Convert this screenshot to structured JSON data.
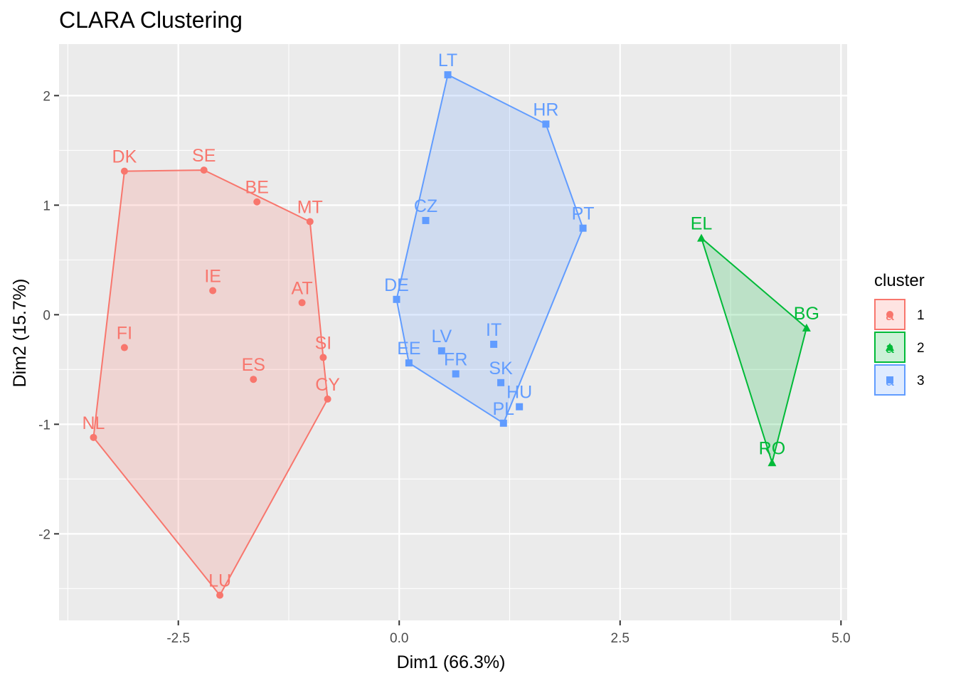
{
  "chart_data": {
    "type": "scatter",
    "title": "CLARA Clustering",
    "xlabel": "Dim1 (66.3%)",
    "ylabel": "Dim2 (15.7%)",
    "xlim": [
      -3.85,
      5.07
    ],
    "ylim": [
      -2.79,
      2.47
    ],
    "x_major_ticks": [
      -2.5,
      0.0,
      2.5,
      5.0
    ],
    "x_tick_labels": [
      "-2.5",
      "0.0",
      "2.5",
      "5.0"
    ],
    "y_major_ticks": [
      -2,
      -1,
      0,
      1,
      2
    ],
    "y_tick_labels": [
      "-2",
      "-1",
      "0",
      "1",
      "2"
    ],
    "grid": true,
    "background": "#ebebeb",
    "legend": {
      "title": "cluster",
      "position": "right",
      "key_glyph": "a",
      "entries": [
        {
          "label": "1",
          "color": "#f8766d"
        },
        {
          "label": "2",
          "color": "#00ba38"
        },
        {
          "label": "3",
          "color": "#619cff"
        }
      ]
    },
    "series": [
      {
        "name": "1",
        "color": "#f8766d",
        "fill": "#f8766d",
        "marker": "circle",
        "points": [
          {
            "label": "DK",
            "x": -3.11,
            "y": 1.31
          },
          {
            "label": "SE",
            "x": -2.21,
            "y": 1.32
          },
          {
            "label": "BE",
            "x": -1.61,
            "y": 1.03
          },
          {
            "label": "MT",
            "x": -1.01,
            "y": 0.85
          },
          {
            "label": "IE",
            "x": -2.11,
            "y": 0.22
          },
          {
            "label": "AT",
            "x": -1.1,
            "y": 0.11
          },
          {
            "label": "FI",
            "x": -3.11,
            "y": -0.3
          },
          {
            "label": "SI",
            "x": -0.86,
            "y": -0.39
          },
          {
            "label": "ES",
            "x": -1.65,
            "y": -0.59
          },
          {
            "label": "CY",
            "x": -0.81,
            "y": -0.77
          },
          {
            "label": "NL",
            "x": -3.46,
            "y": -1.12
          },
          {
            "label": "LU",
            "x": -2.03,
            "y": -2.56
          }
        ],
        "hull": [
          "NL",
          "DK",
          "SE",
          "MT",
          "SI",
          "CY",
          "LU"
        ]
      },
      {
        "name": "2",
        "color": "#00ba38",
        "fill": "#00ba38",
        "marker": "triangle",
        "points": [
          {
            "label": "EL",
            "x": 3.42,
            "y": 0.7
          },
          {
            "label": "BG",
            "x": 4.61,
            "y": -0.12
          },
          {
            "label": "RO",
            "x": 4.22,
            "y": -1.35
          }
        ],
        "hull": [
          "EL",
          "BG",
          "RO"
        ]
      },
      {
        "name": "3",
        "color": "#619cff",
        "fill": "#619cff",
        "marker": "square",
        "points": [
          {
            "label": "LT",
            "x": 0.55,
            "y": 2.19
          },
          {
            "label": "HR",
            "x": 1.66,
            "y": 1.74
          },
          {
            "label": "PT",
            "x": 2.08,
            "y": 0.79
          },
          {
            "label": "CZ",
            "x": 0.3,
            "y": 0.86
          },
          {
            "label": "DE",
            "x": -0.03,
            "y": 0.14
          },
          {
            "label": "LV",
            "x": 0.48,
            "y": -0.33
          },
          {
            "label": "IT",
            "x": 1.07,
            "y": -0.27
          },
          {
            "label": "EE",
            "x": 0.11,
            "y": -0.44
          },
          {
            "label": "FR",
            "x": 0.64,
            "y": -0.54
          },
          {
            "label": "SK",
            "x": 1.15,
            "y": -0.62
          },
          {
            "label": "HU",
            "x": 1.36,
            "y": -0.84
          },
          {
            "label": "PL",
            "x": 1.18,
            "y": -0.99
          }
        ],
        "hull": [
          "LT",
          "HR",
          "PT",
          "PL",
          "EE",
          "DE"
        ]
      }
    ]
  }
}
